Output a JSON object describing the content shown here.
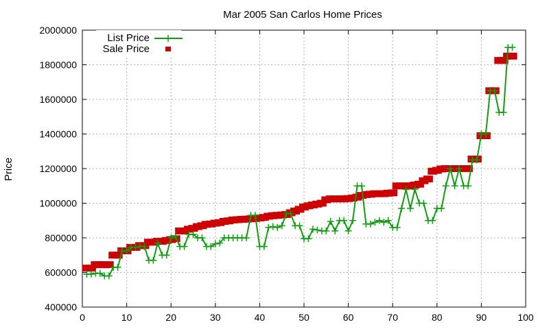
{
  "chart_data": {
    "type": "line",
    "title": "Mar 2005 San Carlos Home Prices",
    "xlabel": "",
    "ylabel": "Price",
    "xlim": [
      0,
      100
    ],
    "ylim": [
      400000,
      2000000
    ],
    "x_ticks": [
      0,
      10,
      20,
      30,
      40,
      50,
      60,
      70,
      80,
      90,
      100
    ],
    "y_ticks": [
      400000,
      600000,
      800000,
      1000000,
      1200000,
      1400000,
      1600000,
      1800000,
      2000000
    ],
    "x_tick_labels": [
      "0",
      "10",
      "20",
      "30",
      "40",
      "50",
      "60",
      "70",
      "80",
      "90",
      "100"
    ],
    "y_tick_labels": [
      "400000",
      "600000",
      "800000",
      "1000000",
      "1200000",
      "1400000",
      "1600000",
      "1800000",
      "2000000"
    ],
    "grid": true,
    "legend_position": "top-left",
    "series": [
      {
        "name": "List Price",
        "style": "line-with-plus-markers",
        "color": "#109c10",
        "points": [
          [
            1,
            590000
          ],
          [
            2,
            590000
          ],
          [
            3,
            595000
          ],
          [
            4,
            595000
          ],
          [
            5,
            580000
          ],
          [
            6,
            580000
          ],
          [
            7,
            630000
          ],
          [
            8,
            630000
          ],
          [
            9,
            725000
          ],
          [
            10,
            725000
          ],
          [
            11,
            745000
          ],
          [
            12,
            745000
          ],
          [
            13,
            750000
          ],
          [
            14,
            750000
          ],
          [
            15,
            670000
          ],
          [
            16,
            670000
          ],
          [
            17,
            770000
          ],
          [
            18,
            700000
          ],
          [
            19,
            700000
          ],
          [
            20,
            800000
          ],
          [
            21,
            810000
          ],
          [
            22,
            750000
          ],
          [
            23,
            750000
          ],
          [
            24,
            820000
          ],
          [
            25,
            820000
          ],
          [
            26,
            800000
          ],
          [
            27,
            800000
          ],
          [
            28,
            750000
          ],
          [
            29,
            750000
          ],
          [
            30,
            765000
          ],
          [
            31,
            770000
          ],
          [
            32,
            800000
          ],
          [
            33,
            800000
          ],
          [
            34,
            800000
          ],
          [
            35,
            800000
          ],
          [
            36,
            800000
          ],
          [
            37,
            800000
          ],
          [
            38,
            930000
          ],
          [
            39,
            930000
          ],
          [
            40,
            750000
          ],
          [
            41,
            750000
          ],
          [
            42,
            860000
          ],
          [
            43,
            865000
          ],
          [
            44,
            860000
          ],
          [
            45,
            870000
          ],
          [
            46,
            940000
          ],
          [
            47,
            940000
          ],
          [
            48,
            870000
          ],
          [
            49,
            870000
          ],
          [
            50,
            795000
          ],
          [
            51,
            795000
          ],
          [
            52,
            850000
          ],
          [
            53,
            845000
          ],
          [
            54,
            840000
          ],
          [
            55,
            840000
          ],
          [
            56,
            895000
          ],
          [
            57,
            840000
          ],
          [
            58,
            900000
          ],
          [
            59,
            900000
          ],
          [
            60,
            840000
          ],
          [
            61,
            900000
          ],
          [
            62,
            1100000
          ],
          [
            63,
            1100000
          ],
          [
            64,
            880000
          ],
          [
            65,
            880000
          ],
          [
            66,
            890000
          ],
          [
            67,
            900000
          ],
          [
            68,
            890000
          ],
          [
            69,
            900000
          ],
          [
            70,
            860000
          ],
          [
            71,
            860000
          ],
          [
            72,
            970000
          ],
          [
            73,
            1080000
          ],
          [
            74,
            970000
          ],
          [
            75,
            1080000
          ],
          [
            76,
            1000000
          ],
          [
            77,
            1000000
          ],
          [
            78,
            900000
          ],
          [
            79,
            900000
          ],
          [
            80,
            970000
          ],
          [
            81,
            970000
          ],
          [
            82,
            1100000
          ],
          [
            83,
            1200000
          ],
          [
            84,
            1100000
          ],
          [
            85,
            1200000
          ],
          [
            86,
            1100000
          ],
          [
            87,
            1100000
          ],
          [
            88,
            1250000
          ],
          [
            89,
            1250000
          ],
          [
            90,
            1400000
          ],
          [
            91,
            1400000
          ],
          [
            92,
            1650000
          ],
          [
            93,
            1650000
          ],
          [
            94,
            1525000
          ],
          [
            95,
            1525000
          ],
          [
            96,
            1900000
          ],
          [
            97,
            1900000
          ]
        ]
      },
      {
        "name": "Sale Price",
        "style": "square-markers",
        "color": "#cc0000",
        "points": [
          [
            1,
            625000
          ],
          [
            2,
            625000
          ],
          [
            3,
            645000
          ],
          [
            4,
            645000
          ],
          [
            5,
            645000
          ],
          [
            6,
            645000
          ],
          [
            7,
            700000
          ],
          [
            8,
            700000
          ],
          [
            9,
            725000
          ],
          [
            10,
            725000
          ],
          [
            11,
            745000
          ],
          [
            12,
            745000
          ],
          [
            13,
            755000
          ],
          [
            14,
            755000
          ],
          [
            15,
            775000
          ],
          [
            16,
            775000
          ],
          [
            17,
            780000
          ],
          [
            18,
            780000
          ],
          [
            19,
            785000
          ],
          [
            20,
            790000
          ],
          [
            21,
            795000
          ],
          [
            22,
            840000
          ],
          [
            23,
            840000
          ],
          [
            24,
            850000
          ],
          [
            25,
            855000
          ],
          [
            26,
            865000
          ],
          [
            27,
            870000
          ],
          [
            28,
            878000
          ],
          [
            29,
            880000
          ],
          [
            30,
            885000
          ],
          [
            31,
            888000
          ],
          [
            32,
            895000
          ],
          [
            33,
            898000
          ],
          [
            34,
            903000
          ],
          [
            35,
            905000
          ],
          [
            36,
            907000
          ],
          [
            37,
            908000
          ],
          [
            38,
            910000
          ],
          [
            39,
            912000
          ],
          [
            40,
            915000
          ],
          [
            41,
            918000
          ],
          [
            42,
            925000
          ],
          [
            43,
            928000
          ],
          [
            44,
            930000
          ],
          [
            45,
            932000
          ],
          [
            46,
            935000
          ],
          [
            47,
            945000
          ],
          [
            48,
            955000
          ],
          [
            49,
            965000
          ],
          [
            50,
            978000
          ],
          [
            51,
            985000
          ],
          [
            52,
            990000
          ],
          [
            53,
            995000
          ],
          [
            54,
            1000000
          ],
          [
            55,
            1020000
          ],
          [
            56,
            1025000
          ],
          [
            57,
            1025000
          ],
          [
            58,
            1025000
          ],
          [
            59,
            1025000
          ],
          [
            60,
            1027000
          ],
          [
            61,
            1030000
          ],
          [
            62,
            1035000
          ],
          [
            63,
            1045000
          ],
          [
            64,
            1050000
          ],
          [
            65,
            1052000
          ],
          [
            66,
            1055000
          ],
          [
            67,
            1055000
          ],
          [
            68,
            1055000
          ],
          [
            69,
            1058000
          ],
          [
            70,
            1060000
          ],
          [
            71,
            1100000
          ],
          [
            72,
            1100000
          ],
          [
            73,
            1100000
          ],
          [
            74,
            1100000
          ],
          [
            75,
            1105000
          ],
          [
            76,
            1110000
          ],
          [
            77,
            1130000
          ],
          [
            78,
            1140000
          ],
          [
            79,
            1185000
          ],
          [
            80,
            1190000
          ],
          [
            81,
            1198000
          ],
          [
            82,
            1200000
          ],
          [
            83,
            1200000
          ],
          [
            84,
            1200000
          ],
          [
            85,
            1200000
          ],
          [
            86,
            1200000
          ],
          [
            87,
            1200000
          ],
          [
            88,
            1255000
          ],
          [
            89,
            1255000
          ],
          [
            90,
            1390000
          ],
          [
            91,
            1390000
          ],
          [
            92,
            1650000
          ],
          [
            93,
            1650000
          ],
          [
            94,
            1825000
          ],
          [
            95,
            1825000
          ],
          [
            96,
            1850000
          ],
          [
            97,
            1850000
          ]
        ]
      }
    ]
  }
}
